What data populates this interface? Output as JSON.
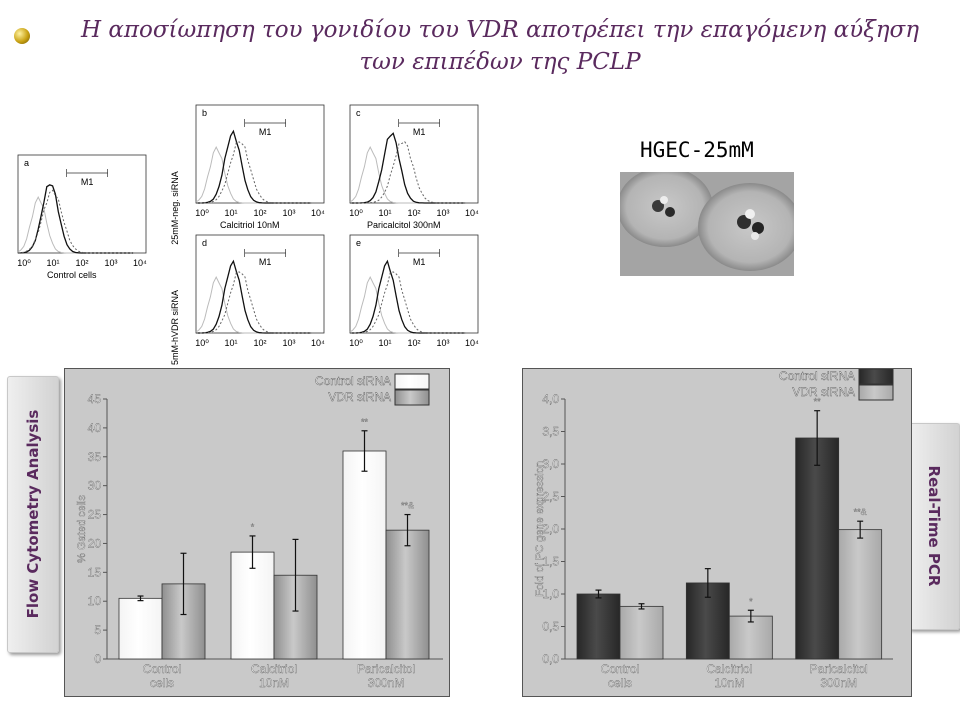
{
  "slide": {
    "title_line1": "Η αποσίωπηση του γονιδίου του VDR αποτρέπει την επαγόμενη αύξηση",
    "title_line2": "των επιπέδων της PCLP",
    "hgec_label": "HGEC-25mM",
    "left_tab": "Flow Cytometry Analysis",
    "right_tab": "Real-Time PCR"
  },
  "histograms": {
    "row_label_top": "25mM-neg. siRNA",
    "row_label_bottom": "25mM-hVDR siRNA",
    "gate_label": "M1",
    "panels": [
      {
        "letter": "a",
        "caption": "Control cells"
      },
      {
        "letter": "b",
        "caption": "Calcitriol 10nM"
      },
      {
        "letter": "c",
        "caption": "Paricalcitol 300nM"
      },
      {
        "letter": "d",
        "caption": ""
      },
      {
        "letter": "e",
        "caption": ""
      }
    ],
    "x_ticks": [
      "10⁰",
      "10¹",
      "10²",
      "10³",
      "10⁴"
    ]
  },
  "chart_data": [
    {
      "type": "bar",
      "title": "",
      "xlabel": "",
      "ylabel": "% Gated cells",
      "ylim": [
        0,
        45
      ],
      "yticks": [
        0,
        5,
        10,
        15,
        20,
        25,
        30,
        35,
        40,
        45
      ],
      "categories": [
        [
          "Control",
          "cells"
        ],
        [
          "Calcitriol",
          "10nM"
        ],
        [
          "Paricalcitol",
          "300nM"
        ]
      ],
      "series": [
        {
          "name": "Control siRNA",
          "color": "#f4f4f4",
          "values": [
            10.5,
            18.5,
            36
          ],
          "err": [
            0.4,
            2.8,
            3.5
          ],
          "marks": [
            "",
            "*",
            "**"
          ]
        },
        {
          "name": "VDR siRNA",
          "color": "#8f8f8f",
          "values": [
            13,
            14.5,
            22.3
          ],
          "err": [
            5.3,
            6.2,
            2.7
          ],
          "marks": [
            "",
            "",
            "**&"
          ]
        }
      ],
      "legend": "top-right"
    },
    {
      "type": "bar",
      "title": "",
      "xlabel": "",
      "ylabel": "Fold of PC gene expression",
      "ylim": [
        0,
        4
      ],
      "yticks": [
        "0,0",
        "0,5",
        "1,0",
        "1,5",
        "2,0",
        "2,5",
        "3,0",
        "3,5",
        "4,0"
      ],
      "categories": [
        [
          "Control",
          "cells"
        ],
        [
          "Calcitriol",
          "10nM"
        ],
        [
          "Paricalcitol",
          "300nM"
        ]
      ],
      "series": [
        {
          "name": "Control siRNA",
          "color": "#272727",
          "values": [
            1.0,
            1.17,
            3.4
          ],
          "err": [
            0.06,
            0.22,
            0.42
          ],
          "marks": [
            "",
            "",
            "**"
          ]
        },
        {
          "name": "VDR siRNA",
          "color": "#a9a9a9",
          "values": [
            0.81,
            0.66,
            1.99
          ],
          "err": [
            0.04,
            0.09,
            0.13
          ],
          "marks": [
            "",
            "*",
            "**&"
          ]
        }
      ],
      "legend": "top-right"
    }
  ]
}
